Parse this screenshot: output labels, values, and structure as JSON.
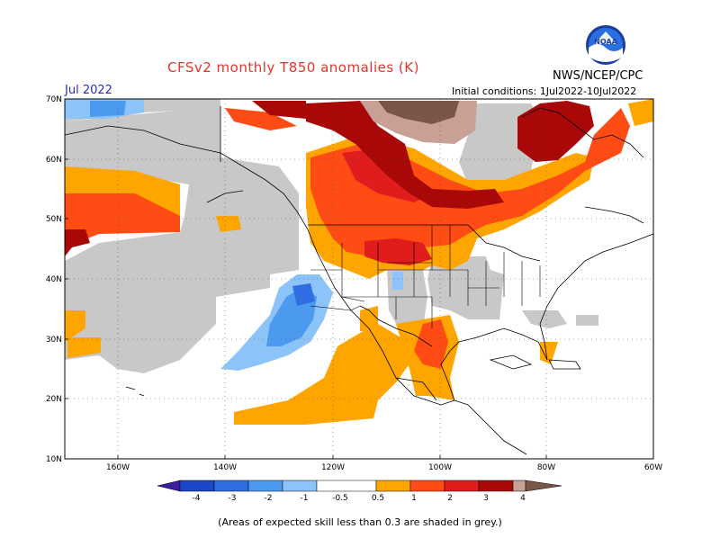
{
  "header": {
    "title": "CFSv2 monthly T850 anomalies (K)",
    "agency": "NWS/NCEP/CPC",
    "month": "Jul 2022",
    "initial_conditions": "Initial conditions: 1Jul2022-10Jul2022"
  },
  "logo": {
    "text": "NOAA"
  },
  "map": {
    "lat_ticks": [
      "70N",
      "60N",
      "50N",
      "40N",
      "30N",
      "20N",
      "10N"
    ],
    "lon_ticks": [
      "160W",
      "140W",
      "120W",
      "100W",
      "80W",
      "60W"
    ],
    "grid": true
  },
  "legend": {
    "labels": [
      "-4",
      "-3",
      "-2",
      "-1",
      "-0.5",
      "0.5",
      "1",
      "2",
      "3",
      "4"
    ],
    "colors": [
      "#3a1fa0",
      "#1e46c8",
      "#2f6ee0",
      "#4b9af0",
      "#8cc3f8",
      "#ffffff",
      "#ffa500",
      "#ff4b14",
      "#e01c1c",
      "#a80808",
      "#c8a096",
      "#7a5648"
    ]
  },
  "colors": {
    "skill_grey": "#c8c8c8",
    "orange": "#ffa500",
    "red_orange": "#ff4b14",
    "red": "#e01c1c",
    "dark_red": "#a80808",
    "rose": "#c8a096",
    "brown": "#7a5648",
    "light_blue": "#8cc3f8",
    "blue": "#4b9af0"
  },
  "footnote": "(Areas of expected skill less than 0.3 are shaded in grey.)"
}
